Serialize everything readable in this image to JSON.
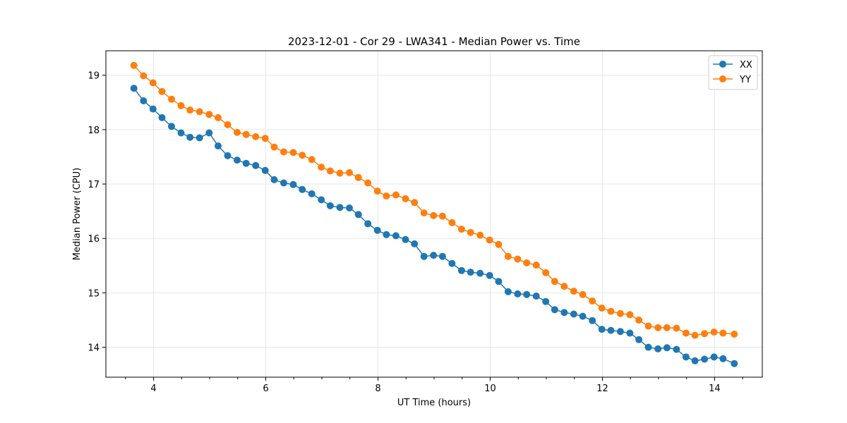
{
  "chart_data": {
    "type": "line",
    "title": "2023-12-01 - Cor 29 - LWA341 - Median Power vs. Time",
    "xlabel": "UT Time (hours)",
    "ylabel": "Median Power (CPU)",
    "xlim": [
      3.15,
      14.85
    ],
    "ylim": [
      13.45,
      19.45
    ],
    "xticks": [
      4,
      6,
      8,
      10,
      12,
      14
    ],
    "xtick_labels": [
      "4",
      "6",
      "8",
      "10",
      "12",
      "14"
    ],
    "xminor_step": 0.5,
    "yticks": [
      14,
      15,
      16,
      17,
      18,
      19
    ],
    "ytick_labels": [
      "14",
      "15",
      "16",
      "17",
      "18",
      "19"
    ],
    "grid": true,
    "legend_position": "top-right",
    "x": [
      3.65,
      3.82,
      3.99,
      4.15,
      4.32,
      4.49,
      4.65,
      4.82,
      4.99,
      5.15,
      5.32,
      5.49,
      5.65,
      5.82,
      5.99,
      6.15,
      6.32,
      6.49,
      6.65,
      6.82,
      6.99,
      7.15,
      7.32,
      7.49,
      7.65,
      7.82,
      7.99,
      8.15,
      8.32,
      8.49,
      8.65,
      8.82,
      8.99,
      9.15,
      9.32,
      9.49,
      9.65,
      9.82,
      9.99,
      10.15,
      10.32,
      10.49,
      10.65,
      10.82,
      10.99,
      11.15,
      11.32,
      11.49,
      11.65,
      11.82,
      11.99,
      12.15,
      12.32,
      12.49,
      12.65,
      12.82,
      12.99,
      13.15,
      13.32,
      13.49,
      13.65,
      13.82,
      13.99,
      14.15,
      14.35
    ],
    "series": [
      {
        "name": "XX",
        "color": "#1f77b4",
        "values": [
          18.76,
          18.53,
          18.38,
          18.22,
          18.06,
          17.94,
          17.86,
          17.85,
          17.94,
          17.7,
          17.52,
          17.44,
          17.38,
          17.34,
          17.25,
          17.08,
          17.02,
          16.99,
          16.9,
          16.82,
          16.71,
          16.6,
          16.57,
          16.56,
          16.44,
          16.27,
          16.15,
          16.07,
          16.05,
          15.98,
          15.9,
          15.67,
          15.69,
          15.67,
          15.54,
          15.41,
          15.38,
          15.36,
          15.32,
          15.21,
          15.02,
          14.98,
          14.97,
          14.94,
          14.84,
          14.69,
          14.64,
          14.61,
          14.57,
          14.49,
          14.33,
          14.31,
          14.29,
          14.26,
          14.14,
          14.0,
          13.97,
          13.99,
          13.96,
          13.82,
          13.75,
          13.78,
          13.82,
          13.79,
          13.7
        ]
      },
      {
        "name": "YY",
        "color": "#ff7f0e",
        "values": [
          19.18,
          18.99,
          18.86,
          18.7,
          18.56,
          18.44,
          18.36,
          18.33,
          18.28,
          18.22,
          18.09,
          17.95,
          17.91,
          17.87,
          17.84,
          17.68,
          17.59,
          17.58,
          17.53,
          17.45,
          17.31,
          17.24,
          17.2,
          17.21,
          17.12,
          17.02,
          16.87,
          16.78,
          16.8,
          16.73,
          16.66,
          16.47,
          16.42,
          16.41,
          16.29,
          16.17,
          16.11,
          16.06,
          15.97,
          15.89,
          15.67,
          15.62,
          15.55,
          15.51,
          15.37,
          15.21,
          15.12,
          15.03,
          14.97,
          14.85,
          14.72,
          14.66,
          14.62,
          14.6,
          14.5,
          14.39,
          14.36,
          14.36,
          14.35,
          14.26,
          14.22,
          14.25,
          14.28,
          14.26,
          14.24
        ]
      }
    ]
  }
}
